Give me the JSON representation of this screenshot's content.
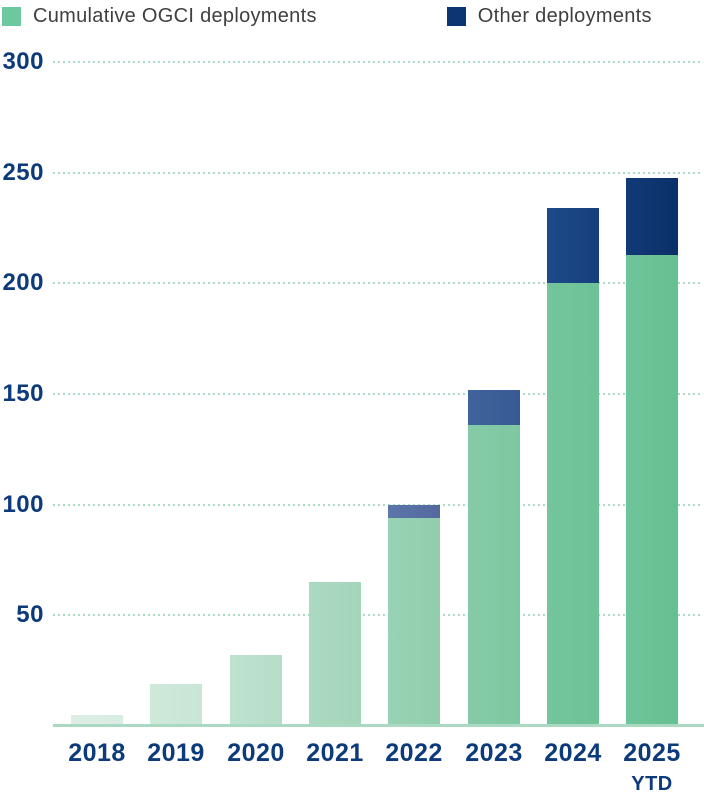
{
  "legend": {
    "items": [
      {
        "label": "Cumulative OGCI deployments",
        "color": "#6cc89e"
      },
      {
        "label": "Other deployments",
        "color": "#0d3572"
      }
    ]
  },
  "chart_data": {
    "type": "bar",
    "stacked": true,
    "title": "",
    "xlabel": "",
    "ylabel": "",
    "categories": [
      "2018",
      "2019",
      "2020",
      "2021",
      "2022",
      "2023",
      "2024",
      "2025"
    ],
    "category_sublabels": [
      "",
      "",
      "",
      "",
      "",
      "",
      "",
      "YTD"
    ],
    "series": [
      {
        "name": "Cumulative OGCI deployments",
        "values": [
          5,
          19,
          32,
          65,
          94,
          136,
          200,
          213
        ]
      },
      {
        "name": "Other deployments",
        "values": [
          0,
          0,
          0,
          0,
          6,
          16,
          34,
          35
        ]
      }
    ],
    "totals": [
      5,
      19,
      32,
      65,
      100,
      152,
      234,
      248
    ],
    "yticks": [
      50,
      100,
      150,
      200,
      250,
      300
    ],
    "ylim": [
      0,
      300
    ],
    "grid": "horizontal-dotted",
    "legend_position": "top-left"
  },
  "colors": {
    "axis_text": "#0d3a7a",
    "legend_text": "#3f3f3f",
    "gridline": "#a9dcc3",
    "baseline": "#a9d9c1",
    "green_segments": [
      [
        "#ddefe5",
        "#d8ece1"
      ],
      [
        "#cfe9db",
        "#c8e5d5"
      ],
      [
        "#bfe2d0",
        "#b6ddc8"
      ],
      [
        "#acd9c1",
        "#a3d5ba"
      ],
      [
        "#99d2b5",
        "#90ceae"
      ],
      [
        "#86cba8",
        "#7dc7a1"
      ],
      [
        "#75c59c",
        "#6dc296"
      ],
      [
        "#6fc59b",
        "#66c090"
      ]
    ],
    "blue_segments": [
      null,
      null,
      null,
      null,
      [
        "#5b76aa",
        "#54699d"
      ],
      [
        "#41639c",
        "#385a92"
      ],
      [
        "#1f4a8a",
        "#153f7c"
      ],
      [
        "#123a78",
        "#0b3068"
      ]
    ]
  }
}
